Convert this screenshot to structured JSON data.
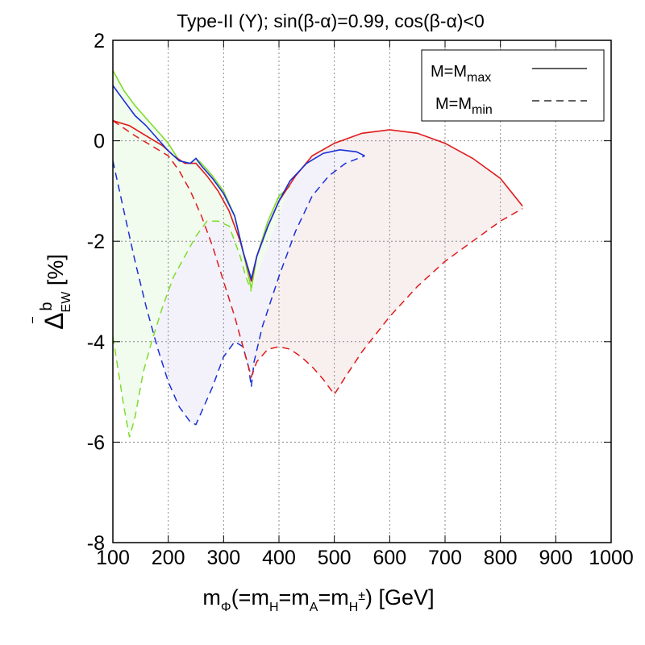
{
  "chart_data": {
    "type": "line",
    "title": "Type-II (Y); sin(β-α)=0.99, cos(β-α)<0",
    "xlabel": {
      "text": "m",
      "sub": "Φ",
      "rest1": "(=m",
      "sub1": "H",
      "rest2": "=m",
      "sub2": "A",
      "rest3": "=m",
      "sub3": "H",
      "sup3": "±",
      "rest4": ") [GeV]"
    },
    "ylabel": {
      "main": "Δ",
      "bar": "‾",
      "sup": "b",
      "sub": "EW",
      "unit": " [%]"
    },
    "xlim": [
      100,
      1000
    ],
    "ylim": [
      -8,
      2
    ],
    "xticks": [
      "100",
      "200",
      "300",
      "400",
      "500",
      "600",
      "700",
      "800",
      "900",
      "1000"
    ],
    "yticks": [
      "-8",
      "-6",
      "-4",
      "-2",
      "0",
      "2"
    ],
    "grid": true,
    "legend": {
      "position": "top-right",
      "entries": [
        {
          "main": "M=M",
          "sub": "max",
          "style": "solid"
        },
        {
          "main": "M=M",
          "sub": "min",
          "style": "dashed"
        }
      ]
    },
    "series": [
      {
        "name": "green",
        "color": "#7fdc2a",
        "fill": "#f1fbee",
        "max": [
          [
            100,
            1.4
          ],
          [
            120,
            1.0
          ],
          [
            140,
            0.7
          ],
          [
            160,
            0.45
          ],
          [
            180,
            0.2
          ],
          [
            200,
            -0.05
          ],
          [
            220,
            -0.4
          ],
          [
            240,
            -0.45
          ],
          [
            250,
            -0.35
          ],
          [
            260,
            -0.45
          ],
          [
            280,
            -0.7
          ],
          [
            300,
            -1.0
          ],
          [
            320,
            -1.5
          ],
          [
            335,
            -2.2
          ],
          [
            350,
            -2.95
          ],
          [
            360,
            -2.3
          ],
          [
            380,
            -1.6
          ],
          [
            400,
            -1.1
          ],
          [
            420,
            -0.9
          ]
        ],
        "min": [
          [
            100,
            -3.9
          ],
          [
            110,
            -4.6
          ],
          [
            120,
            -5.3
          ],
          [
            130,
            -5.9
          ],
          [
            140,
            -5.5
          ],
          [
            155,
            -4.6
          ],
          [
            170,
            -4.0
          ],
          [
            190,
            -3.3
          ],
          [
            210,
            -2.7
          ],
          [
            230,
            -2.3
          ],
          [
            250,
            -1.9
          ],
          [
            270,
            -1.6
          ],
          [
            290,
            -1.6
          ],
          [
            310,
            -1.7
          ],
          [
            330,
            -2.3
          ],
          [
            340,
            -2.7
          ],
          [
            350,
            -3.0
          ]
        ]
      },
      {
        "name": "blue",
        "color": "#1a2fd6",
        "fill": "#f3f2fb",
        "max": [
          [
            100,
            1.1
          ],
          [
            120,
            0.8
          ],
          [
            140,
            0.5
          ],
          [
            160,
            0.3
          ],
          [
            180,
            0.05
          ],
          [
            200,
            -0.2
          ],
          [
            220,
            -0.4
          ],
          [
            240,
            -0.45
          ],
          [
            250,
            -0.35
          ],
          [
            260,
            -0.5
          ],
          [
            280,
            -0.75
          ],
          [
            300,
            -1.05
          ],
          [
            320,
            -1.5
          ],
          [
            335,
            -2.2
          ],
          [
            350,
            -2.75
          ],
          [
            360,
            -2.3
          ],
          [
            380,
            -1.7
          ],
          [
            400,
            -1.2
          ],
          [
            420,
            -0.8
          ],
          [
            450,
            -0.45
          ],
          [
            480,
            -0.25
          ],
          [
            510,
            -0.18
          ],
          [
            540,
            -0.22
          ],
          [
            555,
            -0.3
          ]
        ],
        "min": [
          [
            100,
            -0.4
          ],
          [
            120,
            -1.4
          ],
          [
            140,
            -2.4
          ],
          [
            160,
            -3.3
          ],
          [
            180,
            -4.1
          ],
          [
            200,
            -4.8
          ],
          [
            220,
            -5.3
          ],
          [
            240,
            -5.6
          ],
          [
            250,
            -5.65
          ],
          [
            260,
            -5.4
          ],
          [
            280,
            -4.9
          ],
          [
            300,
            -4.3
          ],
          [
            320,
            -4.0
          ],
          [
            335,
            -4.1
          ],
          [
            345,
            -4.5
          ],
          [
            350,
            -4.9
          ],
          [
            355,
            -4.4
          ],
          [
            370,
            -3.7
          ],
          [
            400,
            -2.7
          ],
          [
            430,
            -1.8
          ],
          [
            460,
            -1.1
          ],
          [
            490,
            -0.7
          ],
          [
            520,
            -0.45
          ],
          [
            555,
            -0.3
          ]
        ]
      },
      {
        "name": "red",
        "color": "#e01b1b",
        "fill": "#f8efef",
        "max": [
          [
            100,
            0.4
          ],
          [
            130,
            0.3
          ],
          [
            160,
            0.1
          ],
          [
            190,
            -0.1
          ],
          [
            210,
            -0.3
          ],
          [
            230,
            -0.45
          ],
          [
            250,
            -0.45
          ],
          [
            270,
            -0.7
          ],
          [
            290,
            -1.0
          ],
          [
            310,
            -1.4
          ],
          [
            330,
            -2.0
          ],
          [
            350,
            -2.8
          ],
          [
            360,
            -2.3
          ],
          [
            380,
            -1.7
          ],
          [
            400,
            -1.2
          ],
          [
            430,
            -0.7
          ],
          [
            460,
            -0.3
          ],
          [
            500,
            -0.05
          ],
          [
            550,
            0.15
          ],
          [
            600,
            0.22
          ],
          [
            650,
            0.15
          ],
          [
            700,
            -0.05
          ],
          [
            750,
            -0.35
          ],
          [
            800,
            -0.75
          ],
          [
            840,
            -1.3
          ]
        ],
        "min": [
          [
            100,
            0.4
          ],
          [
            140,
            0.1
          ],
          [
            170,
            -0.1
          ],
          [
            200,
            -0.3
          ],
          [
            220,
            -0.6
          ],
          [
            240,
            -1.0
          ],
          [
            260,
            -1.5
          ],
          [
            280,
            -2.1
          ],
          [
            300,
            -2.8
          ],
          [
            320,
            -3.5
          ],
          [
            340,
            -4.3
          ],
          [
            350,
            -4.7
          ],
          [
            360,
            -4.4
          ],
          [
            380,
            -4.15
          ],
          [
            400,
            -4.1
          ],
          [
            420,
            -4.15
          ],
          [
            440,
            -4.3
          ],
          [
            460,
            -4.5
          ],
          [
            480,
            -4.75
          ],
          [
            500,
            -5.05
          ],
          [
            520,
            -4.7
          ],
          [
            550,
            -4.2
          ],
          [
            600,
            -3.5
          ],
          [
            650,
            -2.9
          ],
          [
            700,
            -2.4
          ],
          [
            750,
            -2.0
          ],
          [
            800,
            -1.6
          ],
          [
            840,
            -1.35
          ]
        ]
      }
    ]
  }
}
